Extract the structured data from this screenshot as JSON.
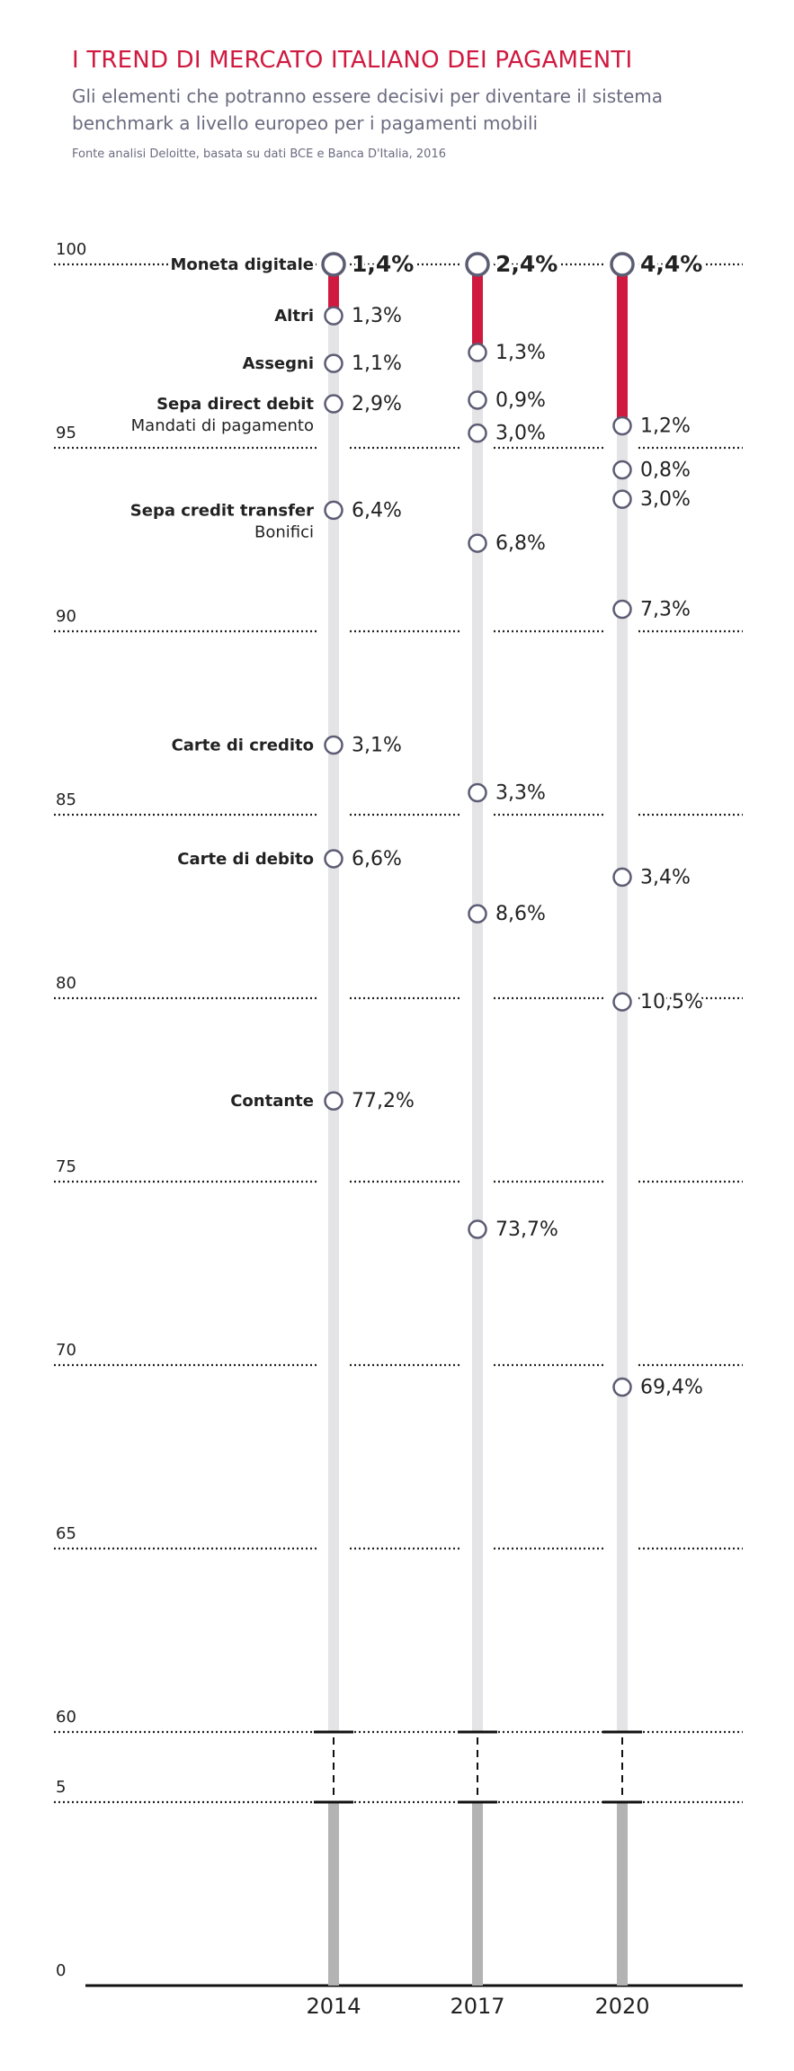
{
  "chart_data": {
    "type": "dot-stack",
    "title": "I TREND DI MERCATO ITALIANO DEI PAGAMENTI",
    "subtitle": "Gli elementi che potranno essere decisivi per diventare il sistema benchmark a livello europeo per i pagamenti mobili",
    "source": "Fonte analisi Deloitte, basata su dati BCE e Banca D'Italia, 2016",
    "categories": [
      "Moneta digitale",
      "Altri",
      "Assegni",
      "Sepa direct debit",
      "Sepa credit transfer",
      "Carte di credito",
      "Carte di debito",
      "Contante"
    ],
    "category_sublabels": [
      null,
      null,
      null,
      "Mandati di pagamento",
      "Bonifici",
      null,
      null,
      null
    ],
    "series": [
      {
        "name": "2014",
        "values": [
          1.4,
          1.3,
          1.1,
          2.9,
          6.4,
          3.1,
          6.6,
          77.2
        ],
        "value_labels": [
          "1,4%",
          "1,3%",
          "1,1%",
          "2,9%",
          "6,4%",
          "3,1%",
          "6,6%",
          "77,2%"
        ]
      },
      {
        "name": "2017",
        "values": [
          2.4,
          1.3,
          0.9,
          3.0,
          6.8,
          3.3,
          8.6,
          73.7
        ],
        "value_labels": [
          "2,4%",
          "1,3%",
          "0,9%",
          "3,0%",
          "6,8%",
          "3,3%",
          "8,6%",
          "73,7%"
        ]
      },
      {
        "name": "2020",
        "values": [
          4.4,
          1.2,
          0.8,
          3.0,
          7.3,
          3.4,
          10.5,
          69.4
        ],
        "value_labels": [
          "4,4%",
          "1,2%",
          "0,8%",
          "3,0%",
          "7,3%",
          "3,4%",
          "10,5%",
          "69,4%"
        ]
      }
    ],
    "ylim": [
      0,
      100
    ],
    "axis_break": [
      5,
      60
    ],
    "yticks": [
      0,
      5,
      60,
      65,
      70,
      75,
      80,
      85,
      90,
      95,
      100
    ],
    "grid": true,
    "highlight_color": "#d0193f",
    "bar_color": "#e4e4e6",
    "base_color": "#b3b3b3",
    "marker_color": "#5c5c74",
    "title_color": "#d0193f"
  }
}
